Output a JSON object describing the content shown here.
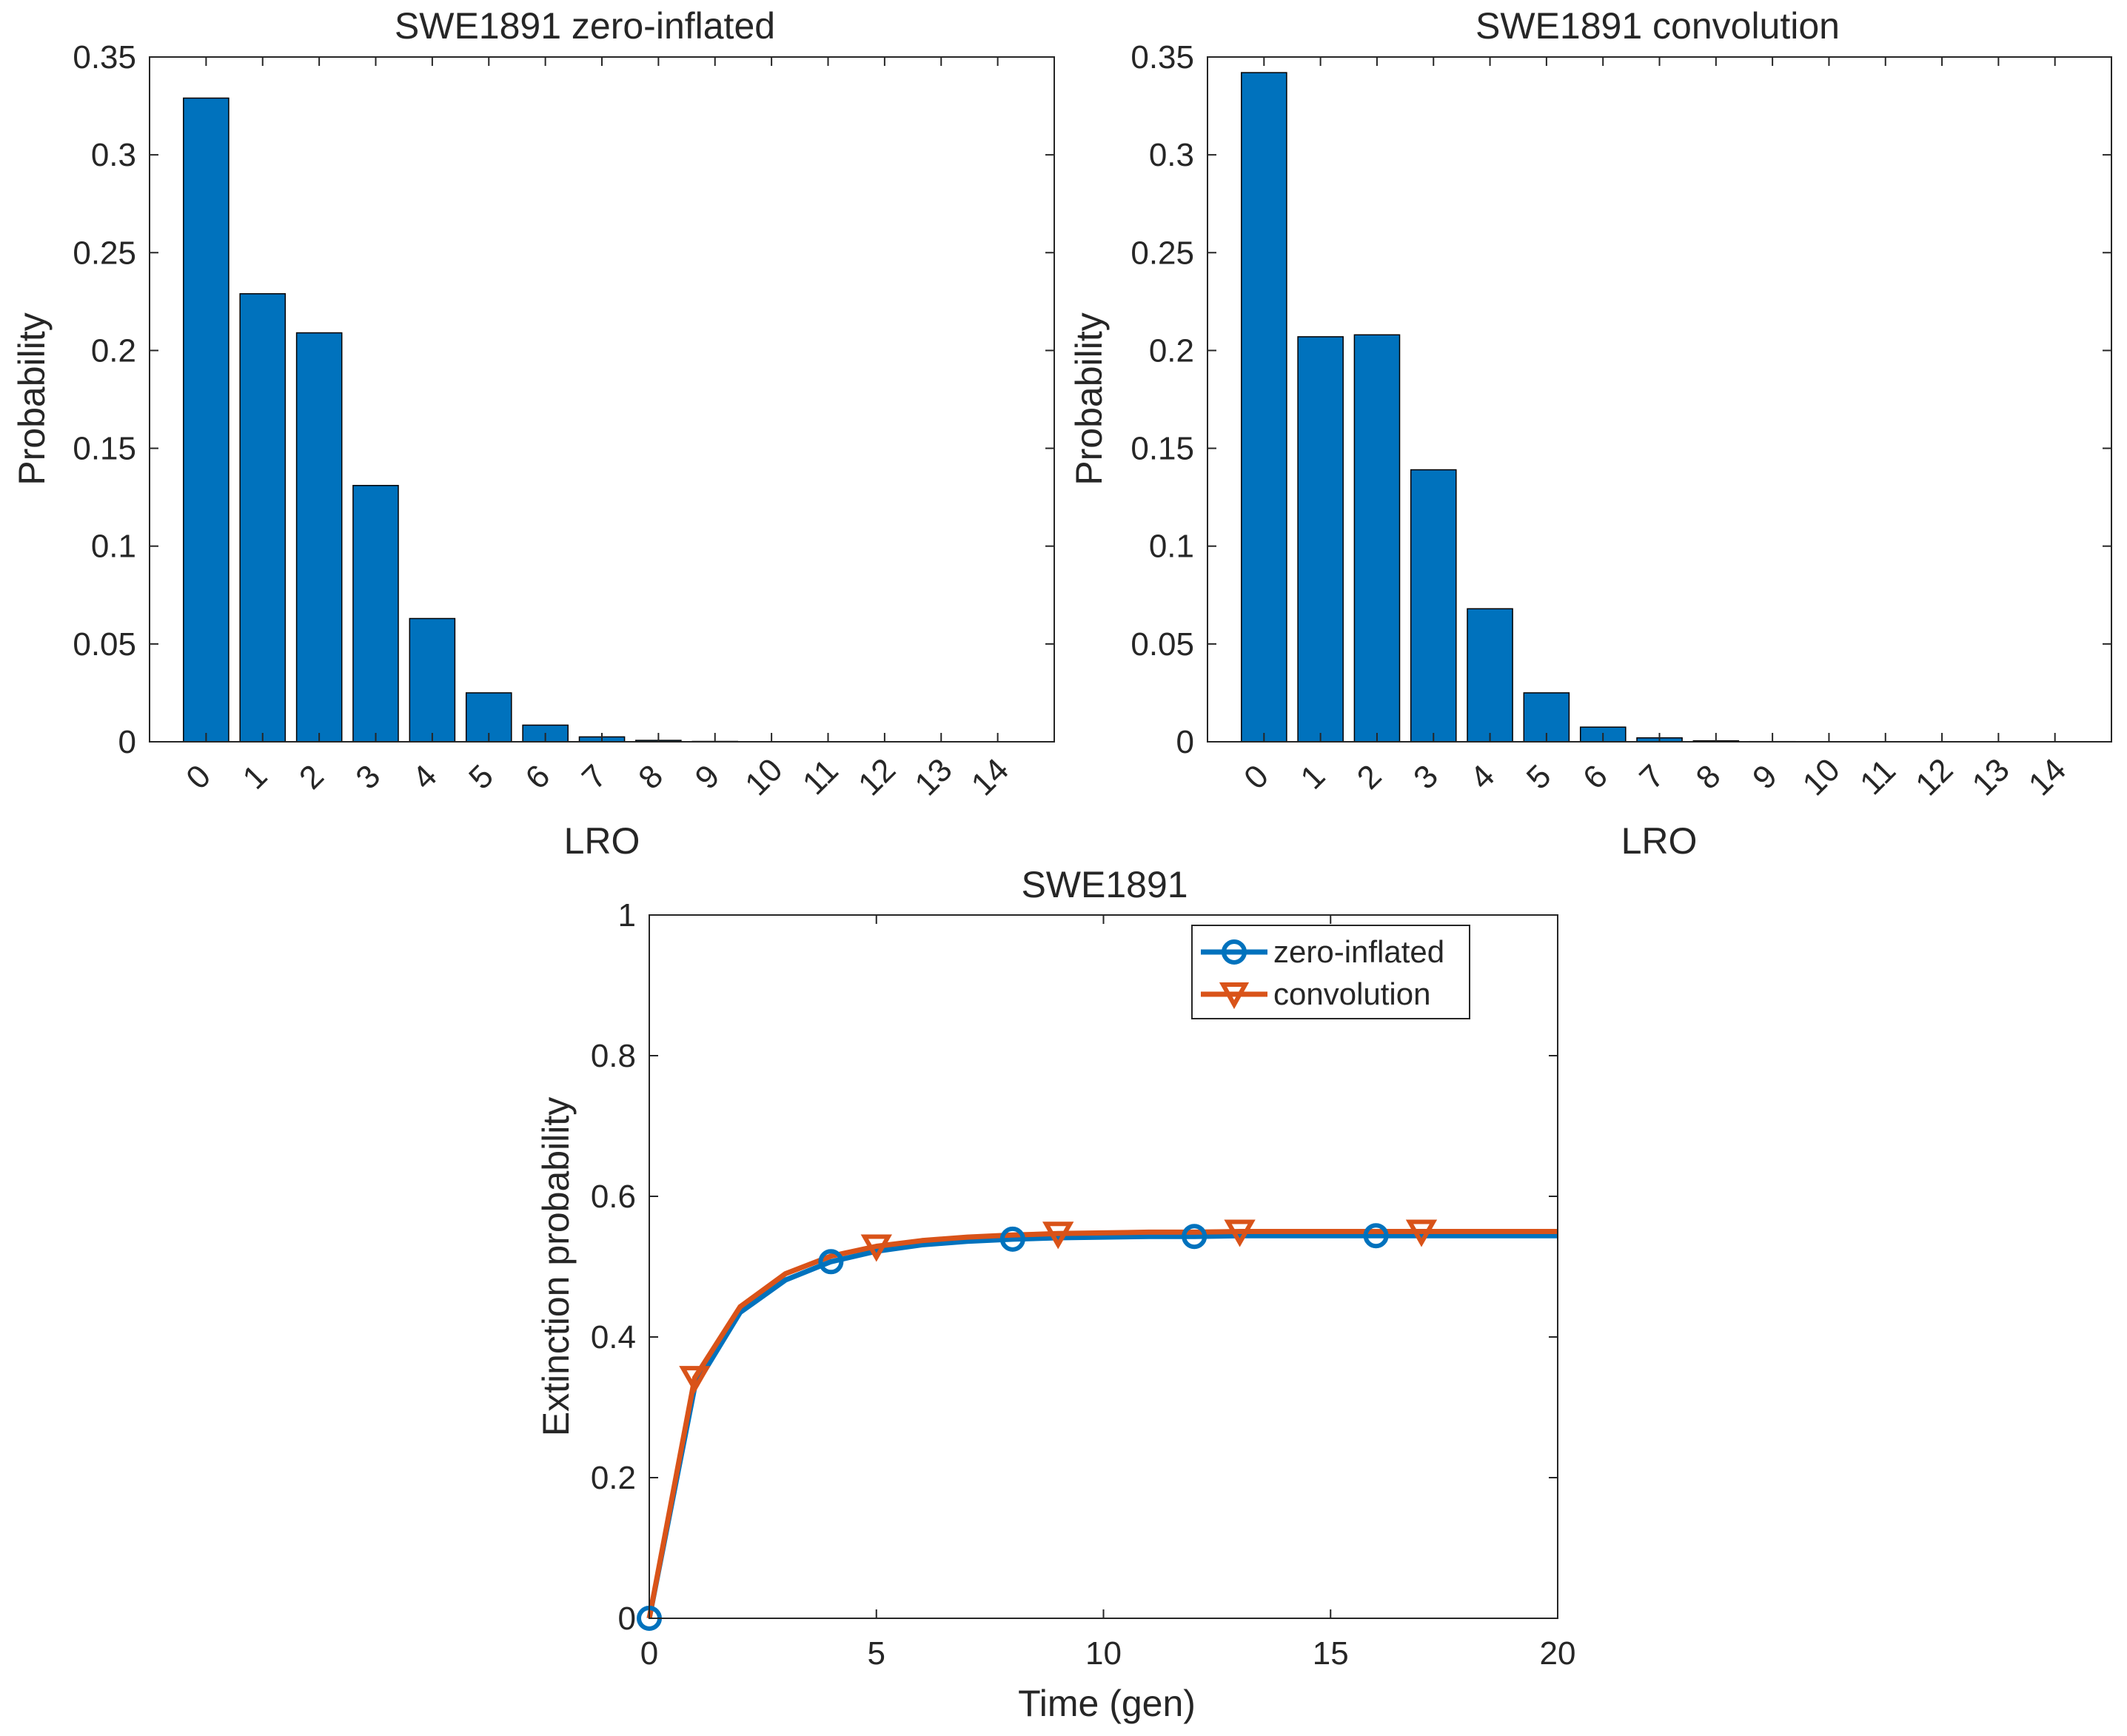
{
  "chart_data": [
    {
      "type": "bar",
      "title": "SWE1891 zero-inflated",
      "xlabel": "LRO",
      "ylabel": "Probability",
      "categories": [
        "0",
        "1",
        "2",
        "3",
        "4",
        "5",
        "6",
        "7",
        "8",
        "9",
        "10",
        "11",
        "12",
        "13",
        "14"
      ],
      "values": [
        0.329,
        0.229,
        0.209,
        0.131,
        0.063,
        0.025,
        0.0085,
        0.0025,
        0.0007,
        0.0002,
        5e-05,
        1e-05,
        0,
        0,
        0
      ],
      "ylim": [
        0,
        0.35
      ],
      "yticks": [
        "0",
        "0.05",
        "0.1",
        "0.15",
        "0.2",
        "0.25",
        "0.3",
        "0.35"
      ],
      "bar_color": "#0072BD",
      "grid": false
    },
    {
      "type": "bar",
      "title": "SWE1891 convolution",
      "xlabel": "LRO",
      "ylabel": "Probability",
      "categories": [
        "0",
        "1",
        "2",
        "3",
        "4",
        "5",
        "6",
        "7",
        "8",
        "9",
        "10",
        "11",
        "12",
        "13",
        "14"
      ],
      "values": [
        0.342,
        0.207,
        0.208,
        0.139,
        0.068,
        0.025,
        0.0075,
        0.002,
        0.0005,
        0.0001,
        2e-05,
        0,
        0,
        0,
        0
      ],
      "ylim": [
        0,
        0.35
      ],
      "yticks": [
        "0",
        "0.05",
        "0.1",
        "0.15",
        "0.2",
        "0.25",
        "0.3",
        "0.35"
      ],
      "bar_color": "#0072BD",
      "grid": false
    },
    {
      "type": "line",
      "title": "SWE1891",
      "xlabel": "Time (gen)",
      "ylabel": "Extinction probability",
      "xlim": [
        0,
        20
      ],
      "ylim": [
        0,
        1
      ],
      "xticks": [
        "0",
        "5",
        "10",
        "15",
        "20"
      ],
      "yticks": [
        "0",
        "0.2",
        "0.4",
        "0.6",
        "0.8",
        "1"
      ],
      "legend_position": "top-right",
      "x": [
        0,
        1,
        2,
        3,
        4,
        5,
        6,
        7,
        8,
        9,
        10,
        11,
        12,
        13,
        14,
        15,
        16,
        17,
        18,
        19,
        20
      ],
      "series": [
        {
          "name": "zero-inflated",
          "color": "#0072BD",
          "marker": "circle",
          "marker_every_x": [
            0,
            4,
            8,
            12,
            16
          ],
          "values": [
            0,
            0.329,
            0.435,
            0.481,
            0.507,
            0.522,
            0.531,
            0.536,
            0.539,
            0.541,
            0.542,
            0.543,
            0.543,
            0.544,
            0.544,
            0.544,
            0.544,
            0.544,
            0.544,
            0.544,
            0.544
          ]
        },
        {
          "name": "convolution",
          "color": "#D95319",
          "marker": "triangle-down",
          "marker_every_x": [
            1,
            5,
            9,
            13,
            17
          ],
          "values": [
            0,
            0.342,
            0.443,
            0.49,
            0.515,
            0.529,
            0.537,
            0.542,
            0.545,
            0.547,
            0.548,
            0.549,
            0.549,
            0.55,
            0.55,
            0.55,
            0.55,
            0.55,
            0.55,
            0.55,
            0.55
          ]
        }
      ],
      "grid": false
    }
  ]
}
